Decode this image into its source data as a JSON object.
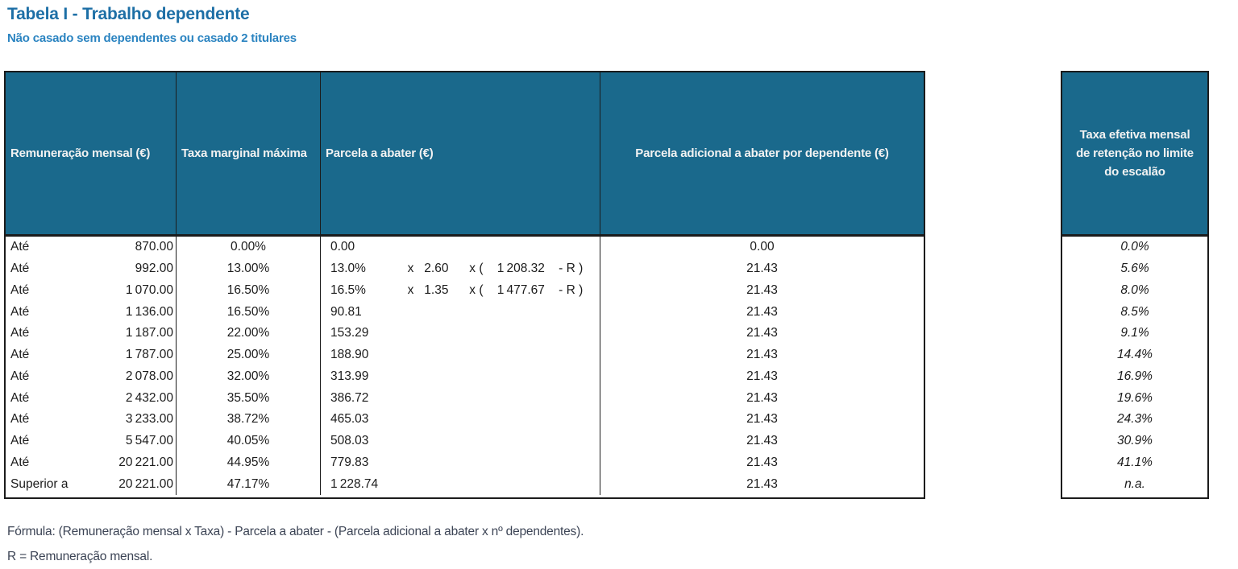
{
  "page": {
    "title": "Tabela I - Trabalho dependente",
    "subtitle": "Não casado sem dependentes ou casado 2 titulares"
  },
  "colors": {
    "header_fill": "#1a698c",
    "header_text": "#f2f2f2",
    "title_text": "#1d6fa6",
    "subtitle_text": "#2b84c1",
    "border": "#1b1b1b",
    "footer_text": "#3c4455"
  },
  "main_table": {
    "headers": {
      "col1": "Remuneração mensal (€)",
      "col2": "Taxa marginal máxima",
      "col3": "Parcela a abater (€)",
      "col4": "Parcela adicional a abater por dependente (€)"
    },
    "rows": [
      {
        "prefix": "Até",
        "amount": "870.00",
        "rate": "0.00%",
        "deduction": "0.00",
        "per_dependent": "0.00"
      },
      {
        "prefix": "Até",
        "amount": "992.00",
        "rate": "13.00%",
        "deduction": "13.0%            x   2.60      x (    1 208.32    - R )",
        "per_dependent": "21.43"
      },
      {
        "prefix": "Até",
        "amount": "1 070.00",
        "rate": "16.50%",
        "deduction": "16.5%            x   1.35      x (    1 477.67    - R )",
        "per_dependent": "21.43"
      },
      {
        "prefix": "Até",
        "amount": "1 136.00",
        "rate": "16.50%",
        "deduction": "90.81",
        "per_dependent": "21.43"
      },
      {
        "prefix": "Até",
        "amount": "1 187.00",
        "rate": "22.00%",
        "deduction": "153.29",
        "per_dependent": "21.43"
      },
      {
        "prefix": "Até",
        "amount": "1 787.00",
        "rate": "25.00%",
        "deduction": "188.90",
        "per_dependent": "21.43"
      },
      {
        "prefix": "Até",
        "amount": "2 078.00",
        "rate": "32.00%",
        "deduction": "313.99",
        "per_dependent": "21.43"
      },
      {
        "prefix": "Até",
        "amount": "2 432.00",
        "rate": "35.50%",
        "deduction": "386.72",
        "per_dependent": "21.43"
      },
      {
        "prefix": "Até",
        "amount": "3 233.00",
        "rate": "38.72%",
        "deduction": "465.03",
        "per_dependent": "21.43"
      },
      {
        "prefix": "Até",
        "amount": "5 547.00",
        "rate": "40.05%",
        "deduction": "508.03",
        "per_dependent": "21.43"
      },
      {
        "prefix": "Até",
        "amount": "20 221.00",
        "rate": "44.95%",
        "deduction": "779.83",
        "per_dependent": "21.43"
      },
      {
        "prefix": "Superior a",
        "amount": "20 221.00",
        "rate": "47.17%",
        "deduction": "1 228.74",
        "per_dependent": "21.43"
      }
    ]
  },
  "side_table": {
    "header": "Taxa efetiva mensal\nde retenção no limite\ndo escalão",
    "values": [
      "0.0%",
      "5.6%",
      "8.0%",
      "8.5%",
      "9.1%",
      "14.4%",
      "16.9%",
      "19.6%",
      "24.3%",
      "30.9%",
      "41.1%",
      "n.a."
    ]
  },
  "footer": {
    "line1": "Fórmula: (Remuneração mensal x Taxa) - Parcela a abater - (Parcela adicional a abater x nº dependentes).",
    "line2": "R = Remuneração mensal."
  }
}
